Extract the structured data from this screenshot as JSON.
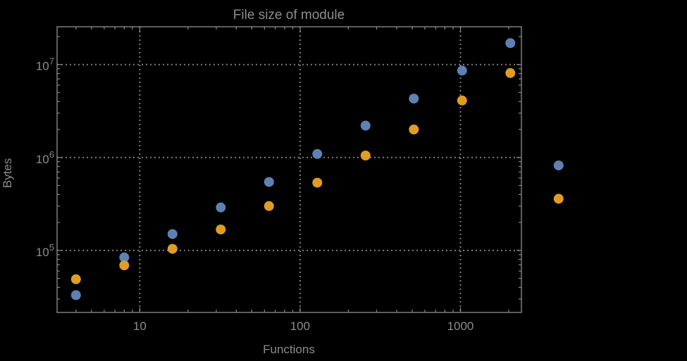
{
  "colors": {
    "background": "#000000",
    "text": "#8c8c8c",
    "frame": "#878787",
    "grid": "#7d7d7d",
    "series_blue": "#5E81B5",
    "series_orange": "#E19C24"
  },
  "chart_data": {
    "type": "scatter",
    "title": "File size of module",
    "xlabel": "Functions",
    "ylabel": "Bytes",
    "xscale": "log",
    "yscale": "log",
    "xlim": [
      3.05,
      2400
    ],
    "ylim": [
      21500,
      25500000
    ],
    "grid": "dotted lines at major decades (10,100,1000 and 1e5,1e6,1e7)",
    "legend_position": "none",
    "marker_radius": 7,
    "plot_range_clipping": false,
    "x_ticks": [
      {
        "value": 10,
        "label": "10"
      },
      {
        "value": 100,
        "label": "100"
      },
      {
        "value": 1000,
        "label": "1000"
      }
    ],
    "y_ticks": [
      {
        "value": 100000,
        "base": "10",
        "exp": "5"
      },
      {
        "value": 1000000,
        "base": "10",
        "exp": "6"
      },
      {
        "value": 10000000,
        "base": "10",
        "exp": "7"
      }
    ],
    "series": [
      {
        "name": "blue",
        "color": "#5E81B5",
        "points": [
          [
            4,
            33000
          ],
          [
            8,
            84000
          ],
          [
            16,
            150000
          ],
          [
            32,
            290000
          ],
          [
            64,
            545000
          ],
          [
            128,
            1090000
          ],
          [
            256,
            2200000
          ],
          [
            512,
            4300000
          ],
          [
            1024,
            8600000
          ],
          [
            2048,
            17000000
          ],
          [
            4096,
            820000
          ]
        ]
      },
      {
        "name": "orange",
        "color": "#E19C24",
        "points": [
          [
            4,
            49000
          ],
          [
            8,
            69000
          ],
          [
            16,
            104000
          ],
          [
            32,
            168000
          ],
          [
            64,
            300000
          ],
          [
            128,
            535000
          ],
          [
            256,
            1050000
          ],
          [
            512,
            2000000
          ],
          [
            1024,
            4100000
          ],
          [
            2048,
            8100000
          ],
          [
            4096,
            360000
          ]
        ]
      }
    ]
  }
}
